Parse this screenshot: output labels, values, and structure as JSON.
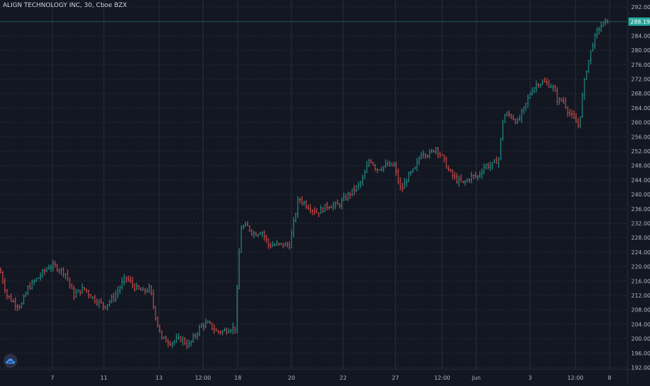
{
  "header": {
    "title": "ALIGN TECHNOLOGY INC, 30, Cboe BZX"
  },
  "colors": {
    "background": "#131722",
    "up": "#26a69a",
    "down": "#ef5350",
    "grid": "#2a2e39",
    "price_line": "#26a69a"
  },
  "icons": {
    "logo": "cloud-logo-icon"
  },
  "chart_data": {
    "type": "ohlc",
    "title": "ALIGN TECHNOLOGY INC, 30, Cboe BZX",
    "ylim": [
      190,
      294
    ],
    "y_ticks": [
      "292.00",
      "288.19",
      "284.00",
      "280.00",
      "276.00",
      "272.00",
      "268.00",
      "264.00",
      "260.00",
      "256.00",
      "252.00",
      "248.00",
      "244.00",
      "240.00",
      "236.00",
      "232.00",
      "228.00",
      "224.00",
      "220.00",
      "216.00",
      "212.00",
      "208.00",
      "204.00",
      "200.00",
      "196.00",
      "192.00"
    ],
    "x_tick_labels": [
      "7",
      "11",
      "13",
      "12:00",
      "18",
      "20",
      "22",
      "27",
      "12:00",
      "Jun",
      "3",
      "12:00",
      "8"
    ],
    "last_price": "288.19",
    "grid": true,
    "anchors": [
      [
        0,
        219
      ],
      [
        10,
        212
      ],
      [
        20,
        210
      ],
      [
        30,
        209
      ],
      [
        40,
        214
      ],
      [
        55,
        217
      ],
      [
        70,
        220
      ],
      [
        80,
        220
      ],
      [
        95,
        218
      ],
      [
        105,
        212
      ],
      [
        120,
        214
      ],
      [
        135,
        211
      ],
      [
        150,
        209
      ],
      [
        165,
        212
      ],
      [
        180,
        217
      ],
      [
        195,
        214
      ],
      [
        205,
        213
      ],
      [
        215,
        214
      ],
      [
        222,
        207
      ],
      [
        232,
        200
      ],
      [
        245,
        199
      ],
      [
        260,
        200
      ],
      [
        270,
        198
      ],
      [
        280,
        201
      ],
      [
        290,
        204
      ],
      [
        300,
        204
      ],
      [
        310,
        202
      ],
      [
        320,
        202
      ],
      [
        330,
        203
      ],
      [
        338,
        203
      ],
      [
        340,
        213
      ],
      [
        345,
        231
      ],
      [
        355,
        231
      ],
      [
        365,
        229
      ],
      [
        375,
        230
      ],
      [
        385,
        226
      ],
      [
        395,
        226
      ],
      [
        405,
        226
      ],
      [
        415,
        226
      ],
      [
        420,
        231
      ],
      [
        428,
        239
      ],
      [
        440,
        237
      ],
      [
        455,
        235
      ],
      [
        470,
        237
      ],
      [
        485,
        237
      ],
      [
        500,
        240
      ],
      [
        512,
        242
      ],
      [
        520,
        244
      ],
      [
        530,
        250
      ],
      [
        540,
        247
      ],
      [
        552,
        248
      ],
      [
        565,
        248
      ],
      [
        575,
        241
      ],
      [
        585,
        245
      ],
      [
        595,
        247
      ],
      [
        605,
        252
      ],
      [
        615,
        251
      ],
      [
        625,
        253
      ],
      [
        635,
        250
      ],
      [
        645,
        246
      ],
      [
        655,
        244
      ],
      [
        665,
        243
      ],
      [
        675,
        245
      ],
      [
        685,
        245
      ],
      [
        695,
        248
      ],
      [
        705,
        248
      ],
      [
        715,
        250
      ],
      [
        722,
        262
      ],
      [
        732,
        262
      ],
      [
        742,
        260
      ],
      [
        752,
        264
      ],
      [
        762,
        269
      ],
      [
        772,
        271
      ],
      [
        782,
        271
      ],
      [
        792,
        270
      ],
      [
        800,
        266
      ],
      [
        808,
        266
      ],
      [
        815,
        263
      ],
      [
        822,
        261
      ],
      [
        830,
        259
      ],
      [
        835,
        267
      ],
      [
        840,
        274
      ],
      [
        850,
        282
      ],
      [
        858,
        286
      ],
      [
        872,
        288.5
      ]
    ]
  },
  "axis": {
    "last_price_label": "288.19"
  }
}
